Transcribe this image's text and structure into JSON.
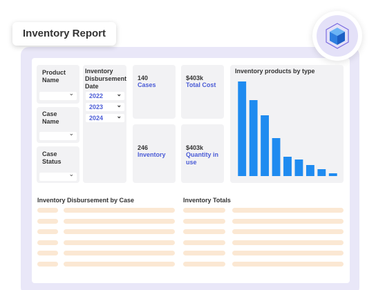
{
  "header": {
    "title": "Inventory Report"
  },
  "filters": [
    {
      "label": "Product Name"
    },
    {
      "label": "Case Name"
    },
    {
      "label": "Case Status"
    }
  ],
  "date_filter": {
    "label": "Inventory Disbursement Date",
    "options": [
      "2022",
      "2023",
      "2024"
    ]
  },
  "kpis": [
    {
      "value": "140",
      "label": "Cases"
    },
    {
      "value": "$403k",
      "label": "Total Cost"
    },
    {
      "value": "246",
      "label": "Inventory"
    },
    {
      "value": "$403k",
      "label": "Quantity in use"
    }
  ],
  "sections": [
    {
      "title": "Inventory Disbursement by Case"
    },
    {
      "title": "Inventory Totals"
    }
  ],
  "chart_data": {
    "type": "bar",
    "title": "Inventory products by type",
    "categories": [
      null,
      null,
      null,
      null,
      null,
      null,
      null,
      null,
      null
    ],
    "values": [
      137,
      110,
      88,
      55,
      28,
      24,
      16,
      10,
      4
    ],
    "color": "#1f8bf0",
    "ylim": [
      0,
      140
    ]
  }
}
